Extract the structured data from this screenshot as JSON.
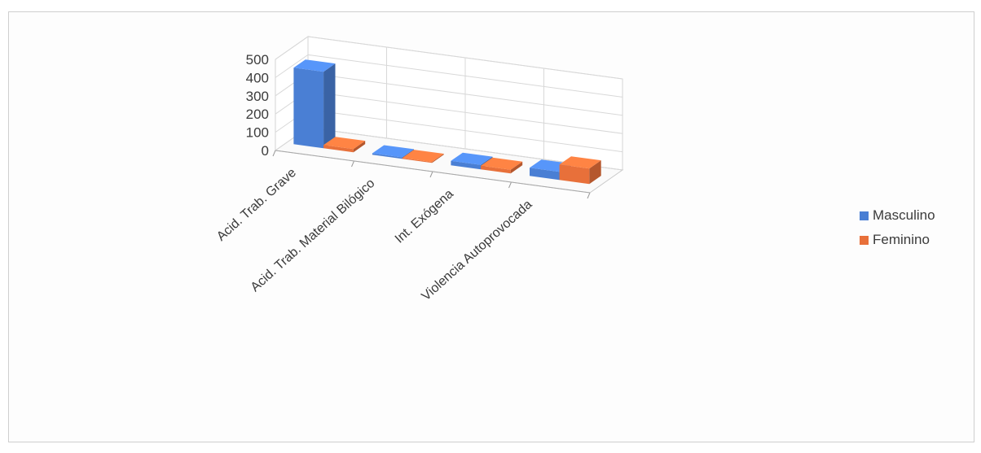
{
  "chart_data": {
    "type": "bar",
    "categories": [
      "Acid. Trab. Grave",
      "Acid. Trab. Material Bilógico",
      "Int. Exógena",
      "Violencia Autoprovocada"
    ],
    "series": [
      {
        "name": "Masculino",
        "values": [
          420,
          8,
          25,
          45
        ],
        "color": "#4a7fd4"
      },
      {
        "name": "Feminino",
        "values": [
          18,
          5,
          20,
          85
        ],
        "color": "#e8703a"
      }
    ],
    "y_ticks": [
      "0",
      "100",
      "200",
      "300",
      "400",
      "500"
    ],
    "ylim": [
      0,
      500
    ],
    "grid": true,
    "legend_position": "right",
    "view": "3d"
  }
}
